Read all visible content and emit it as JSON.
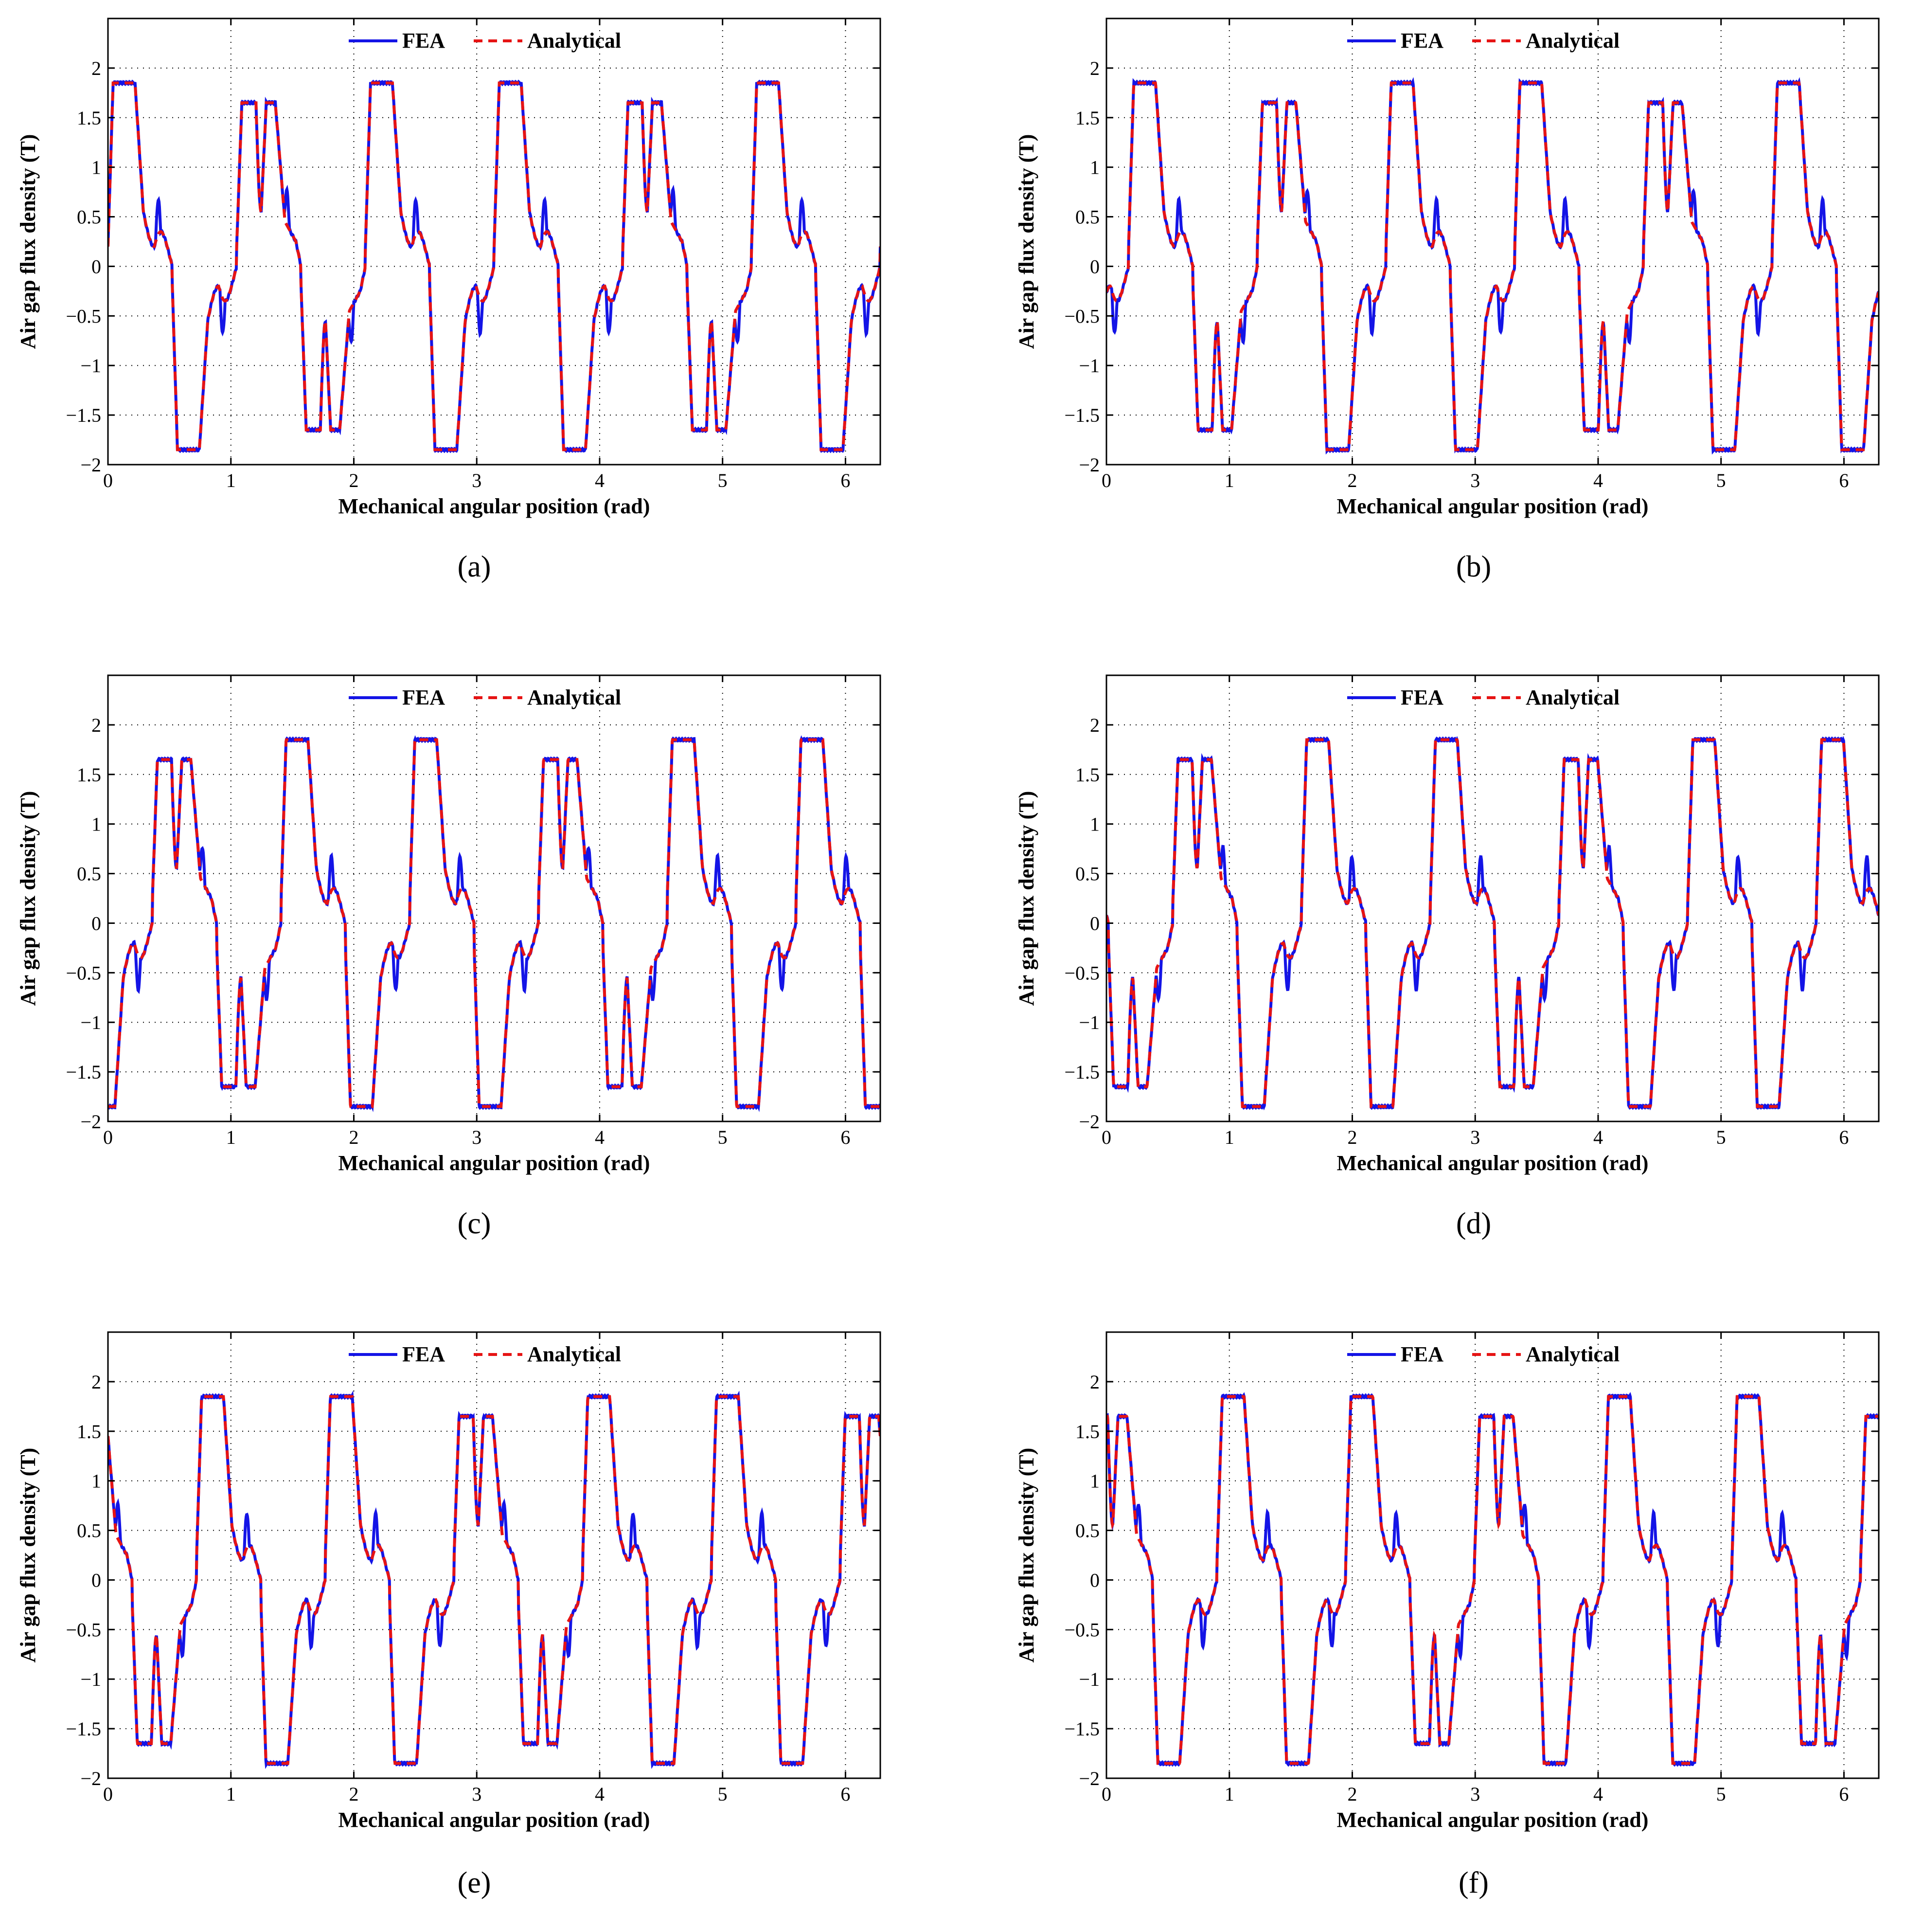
{
  "figure": {
    "colors": {
      "fea": "#1414e6",
      "analytical": "#e61414",
      "axes": "#000000",
      "grid": "#000000"
    }
  },
  "chart_data": [
    {
      "id": "a",
      "caption": "(a)",
      "type": "line",
      "phase_shift": 0.0,
      "xlabel": "Mechanical angular position (rad)",
      "ylabel": "Air gap flux density (T)",
      "xlim": [
        0,
        6.2832
      ],
      "ylim": [
        -2,
        2.5
      ],
      "grid": true,
      "legend_position": "top",
      "xticks": [
        0,
        1,
        2,
        3,
        4,
        5,
        6
      ],
      "xtick_labels": [
        "0",
        "1",
        "2",
        "3",
        "4",
        "5",
        "6"
      ],
      "yticks": [
        -2,
        -1.5,
        -1,
        -0.5,
        0,
        0.5,
        1,
        1.5,
        2
      ],
      "ytick_labels": [
        "−2",
        "−1.5",
        "−1",
        "−0.5",
        "0",
        "0.5",
        "1",
        "1.5",
        "2"
      ],
      "series": [
        {
          "name": "FEA",
          "style": "solid"
        },
        {
          "name": "Analytical",
          "style": "dashed"
        }
      ],
      "pole_sequence": [
        1.85,
        -1.85,
        1.65,
        -1.65,
        1.85,
        -1.85,
        1.85,
        -1.85,
        1.65,
        -1.65,
        1.85,
        -1.85
      ]
    },
    {
      "id": "b",
      "caption": "(b)",
      "type": "line",
      "phase_shift": 0.18,
      "xlabel": "Mechanical angular position (rad)",
      "ylabel": "Air gap flux density (T)",
      "xlim": [
        0,
        6.2832
      ],
      "ylim": [
        -2,
        2.5
      ],
      "grid": true,
      "legend_position": "top",
      "xticks": [
        0,
        1,
        2,
        3,
        4,
        5,
        6
      ],
      "xtick_labels": [
        "0",
        "1",
        "2",
        "3",
        "4",
        "5",
        "6"
      ],
      "yticks": [
        -2,
        -1.5,
        -1,
        -0.5,
        0,
        0.5,
        1,
        1.5,
        2
      ],
      "ytick_labels": [
        "−2",
        "−1.5",
        "−1",
        "−0.5",
        "0",
        "0.5",
        "1",
        "1.5",
        "2"
      ],
      "series": [
        {
          "name": "FEA",
          "style": "solid"
        },
        {
          "name": "Analytical",
          "style": "dashed"
        }
      ],
      "pole_sequence": [
        1.85,
        -1.65,
        1.65,
        -1.85,
        1.85,
        -1.85,
        1.85,
        -1.65,
        1.65,
        -1.85,
        1.85,
        -1.85
      ]
    },
    {
      "id": "c",
      "caption": "(c)",
      "type": "line",
      "phase_shift": 0.36,
      "xlabel": "Mechanical angular position (rad)",
      "ylabel": "Air gap flux density (T)",
      "xlim": [
        0,
        6.2832
      ],
      "ylim": [
        -2,
        2.5
      ],
      "grid": true,
      "legend_position": "top",
      "xticks": [
        0,
        1,
        2,
        3,
        4,
        5,
        6
      ],
      "xtick_labels": [
        "0",
        "1",
        "2",
        "3",
        "4",
        "5",
        "6"
      ],
      "yticks": [
        -2,
        -1.5,
        -1,
        -0.5,
        0,
        0.5,
        1,
        1.5,
        2
      ],
      "ytick_labels": [
        "−2",
        "−1.5",
        "−1",
        "−0.5",
        "0",
        "0.5",
        "1",
        "1.5",
        "2"
      ],
      "series": [
        {
          "name": "FEA",
          "style": "solid"
        },
        {
          "name": "Analytical",
          "style": "dashed"
        }
      ],
      "pole_sequence": [
        1.65,
        -1.65,
        1.85,
        -1.85,
        1.85,
        -1.85,
        1.65,
        -1.65,
        1.85,
        -1.85,
        1.85,
        -1.85
      ]
    },
    {
      "id": "d",
      "caption": "(d)",
      "type": "line",
      "phase_shift": 0.54,
      "xlabel": "Mechanical angular position (rad)",
      "ylabel": "Air gap flux density (T)",
      "xlim": [
        0,
        6.2832
      ],
      "ylim": [
        -2,
        2.5
      ],
      "grid": true,
      "legend_position": "top",
      "xticks": [
        0,
        1,
        2,
        3,
        4,
        5,
        6
      ],
      "xtick_labels": [
        "0",
        "1",
        "2",
        "3",
        "4",
        "5",
        "6"
      ],
      "yticks": [
        -2,
        -1.5,
        -1,
        -0.5,
        0,
        0.5,
        1,
        1.5,
        2
      ],
      "ytick_labels": [
        "−2",
        "−1.5",
        "−1",
        "−0.5",
        "0",
        "0.5",
        "1",
        "1.5",
        "2"
      ],
      "series": [
        {
          "name": "FEA",
          "style": "solid"
        },
        {
          "name": "Analytical",
          "style": "dashed"
        }
      ],
      "pole_sequence": [
        1.65,
        -1.85,
        1.85,
        -1.85,
        1.85,
        -1.65,
        1.65,
        -1.85,
        1.85,
        -1.85,
        1.85,
        -1.65
      ]
    },
    {
      "id": "e",
      "caption": "(e)",
      "type": "line",
      "phase_shift": 0.72,
      "xlabel": "Mechanical angular position (rad)",
      "ylabel": "Air gap flux density (T)",
      "xlim": [
        0,
        6.2832
      ],
      "ylim": [
        -2,
        2.5
      ],
      "grid": true,
      "legend_position": "top",
      "xticks": [
        0,
        1,
        2,
        3,
        4,
        5,
        6
      ],
      "xtick_labels": [
        "0",
        "1",
        "2",
        "3",
        "4",
        "5",
        "6"
      ],
      "yticks": [
        -2,
        -1.5,
        -1,
        -0.5,
        0,
        0.5,
        1,
        1.5,
        2
      ],
      "ytick_labels": [
        "−2",
        "−1.5",
        "−1",
        "−0.5",
        "0",
        "0.5",
        "1",
        "1.5",
        "2"
      ],
      "series": [
        {
          "name": "FEA",
          "style": "solid"
        },
        {
          "name": "Analytical",
          "style": "dashed"
        }
      ],
      "pole_sequence": [
        1.85,
        -1.85,
        1.85,
        -1.85,
        1.65,
        -1.65,
        1.85,
        -1.85,
        1.85,
        -1.85,
        1.65,
        -1.65
      ]
    },
    {
      "id": "f",
      "caption": "(f)",
      "type": "line",
      "phase_shift": 0.9,
      "xlabel": "Mechanical angular position (rad)",
      "ylabel": "Air gap flux density (T)",
      "xlim": [
        0,
        6.2832
      ],
      "ylim": [
        -2,
        2.5
      ],
      "grid": true,
      "legend_position": "top",
      "xticks": [
        0,
        1,
        2,
        3,
        4,
        5,
        6
      ],
      "xtick_labels": [
        "0",
        "1",
        "2",
        "3",
        "4",
        "5",
        "6"
      ],
      "yticks": [
        -2,
        -1.5,
        -1,
        -0.5,
        0,
        0.5,
        1,
        1.5,
        2
      ],
      "ytick_labels": [
        "−2",
        "−1.5",
        "−1",
        "−0.5",
        "0",
        "0.5",
        "1",
        "1.5",
        "2"
      ],
      "series": [
        {
          "name": "FEA",
          "style": "solid"
        },
        {
          "name": "Analytical",
          "style": "dashed"
        }
      ],
      "pole_sequence": [
        1.85,
        -1.85,
        1.85,
        -1.65,
        1.65,
        -1.85,
        1.85,
        -1.85,
        1.85,
        -1.65,
        1.65,
        -1.85
      ]
    }
  ]
}
